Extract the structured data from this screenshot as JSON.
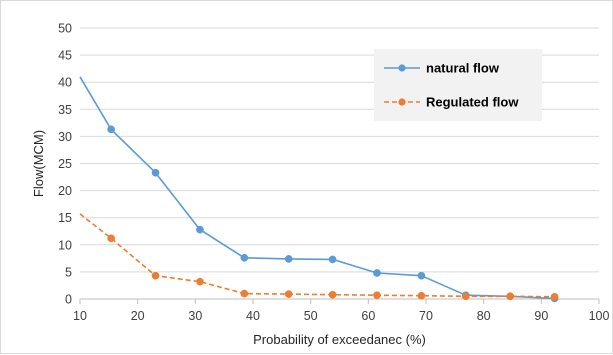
{
  "chart_data": {
    "type": "line",
    "title": "",
    "xlabel": "Probability of exceedanec (%)",
    "ylabel": "Flow(MCM)",
    "xlim": [
      10,
      100
    ],
    "ylim": [
      0,
      50
    ],
    "x_ticks": [
      10,
      20,
      30,
      40,
      50,
      60,
      70,
      80,
      90,
      100
    ],
    "y_ticks": [
      0,
      5,
      10,
      15,
      20,
      25,
      30,
      35,
      40,
      45,
      50
    ],
    "grid": "horizontal",
    "legend_position": "top-right",
    "series": [
      {
        "name": "natural flow",
        "color": "#5b9bd5",
        "line_style": "solid",
        "x": [
          10,
          15.4,
          23.1,
          30.8,
          38.5,
          46.2,
          53.8,
          61.5,
          69.2,
          76.9,
          84.6,
          92.3
        ],
        "y": [
          41,
          31.3,
          23.3,
          12.8,
          7.6,
          7.4,
          7.3,
          4.8,
          4.3,
          0.7,
          0.5,
          0.1
        ]
      },
      {
        "name": "Regulated flow",
        "color": "#ed7d31",
        "line_style": "dashed",
        "x": [
          10,
          15.4,
          23.1,
          30.8,
          38.5,
          46.2,
          53.8,
          61.5,
          69.2,
          76.9,
          84.6,
          92.3
        ],
        "y": [
          15.7,
          11.2,
          4.3,
          3.2,
          1.0,
          0.9,
          0.8,
          0.7,
          0.6,
          0.5,
          0.5,
          0.4
        ]
      }
    ]
  }
}
